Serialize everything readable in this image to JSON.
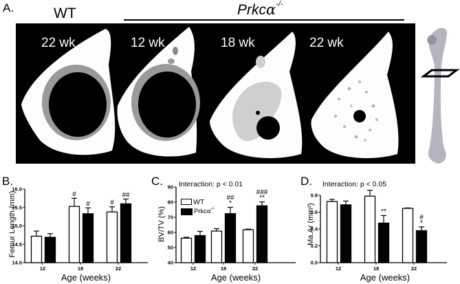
{
  "panel_a": {
    "letter": "A.",
    "wt_label": "WT",
    "ko_label": "Prkc",
    "ko_alpha": "α",
    "ko_superscript": "-/-",
    "images": [
      {
        "label": "22 wk",
        "group": "WT"
      },
      {
        "label": "12 wk",
        "group": "Prkcα-/-"
      },
      {
        "label": "18 wk",
        "group": "Prkcα-/-"
      },
      {
        "label": "22 wk",
        "group": "Prkcα-/-"
      }
    ]
  },
  "colors": {
    "wt": "#ffffff",
    "ko": "#000000",
    "panel_bg": "#000000",
    "bone": "#ffffff",
    "cortex_inner": "#8a8a8a"
  },
  "chart_data": [
    {
      "id": "B",
      "letter": "B.",
      "type": "bar",
      "title": "",
      "xlabel": "Age (weeks)",
      "ylabel": "Femur Length (mm)",
      "ylim": [
        14.0,
        16.0
      ],
      "yticks": [
        "14.0",
        "14.5",
        "15.0",
        "15.5",
        "16.0"
      ],
      "ytick_values": [
        14.0,
        14.5,
        15.0,
        15.5,
        16.0
      ],
      "categories": [
        "12",
        "18",
        "22"
      ],
      "annotation": "",
      "series": [
        {
          "name": "WT",
          "values": [
            14.72,
            15.53,
            15.38
          ],
          "errors": [
            0.14,
            0.22,
            0.14
          ],
          "marks": [
            "",
            "#",
            "#"
          ]
        },
        {
          "name": "Prkcα-/-",
          "values": [
            14.69,
            15.33,
            15.6
          ],
          "errors": [
            0.1,
            0.16,
            0.13
          ],
          "marks": [
            "",
            "#",
            "##"
          ]
        }
      ]
    },
    {
      "id": "C",
      "letter": "C.",
      "type": "bar",
      "title": "",
      "xlabel": "Age (weeks)",
      "ylabel": "BV/TV (%)",
      "ylim": [
        40,
        90
      ],
      "yticks": [
        "40",
        "50",
        "60",
        "70",
        "80",
        "90"
      ],
      "ytick_values": [
        40,
        50,
        60,
        70,
        80,
        90
      ],
      "categories": [
        "12",
        "18",
        "22"
      ],
      "annotation": "Interaction: p < 0.01",
      "legend": {
        "wt": "WT",
        "ko": "Prkcα",
        "ko_sup": "-/-"
      },
      "series": [
        {
          "name": "WT",
          "values": [
            56.2,
            60.9,
            61.8
          ],
          "errors": [
            0.6,
            1.6,
            0.4
          ],
          "marks": [
            "",
            "",
            ""
          ]
        },
        {
          "name": "Prkcα-/-",
          "values": [
            57.9,
            72.4,
            77.6
          ],
          "errors": [
            2.8,
            4.2,
            2.6
          ],
          "marks": [
            "",
            "##\n*",
            "###\n**"
          ]
        }
      ]
    },
    {
      "id": "D",
      "letter": "D.",
      "type": "bar",
      "title": "",
      "xlabel": "Age (weeks)",
      "ylabel": "Ma.Ar (mm²)",
      "ylim": [
        0.0,
        0.8
      ],
      "yticks": [
        "0.0",
        "0.2",
        "0.4",
        "0.6",
        "0.8"
      ],
      "ytick_values": [
        0.0,
        0.2,
        0.4,
        0.6,
        0.8
      ],
      "categories": [
        "12",
        "18",
        "22"
      ],
      "annotation": "Interaction: p < 0.05",
      "series": [
        {
          "name": "WT",
          "values": [
            0.726,
            0.79,
            0.645
          ],
          "errors": [
            0.025,
            0.07,
            0.005
          ],
          "marks": [
            "",
            "",
            ""
          ]
        },
        {
          "name": "Prkcα-/-",
          "values": [
            0.687,
            0.47,
            0.38
          ],
          "errors": [
            0.045,
            0.09,
            0.045
          ],
          "marks": [
            "",
            "**",
            "#\n*"
          ]
        }
      ]
    }
  ]
}
